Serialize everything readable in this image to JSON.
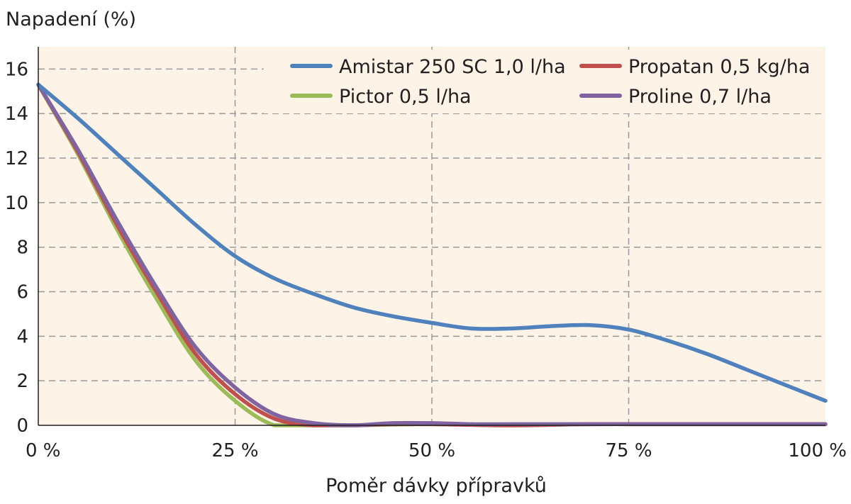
{
  "chart_data": {
    "type": "line",
    "title": "",
    "ylabel": "Napadení (%)",
    "xlabel": "Poměr dávky přípravků",
    "xlim": [
      0,
      100
    ],
    "ylim": [
      0,
      17
    ],
    "x_ticks": [
      0,
      25,
      50,
      75,
      100
    ],
    "x_tick_labels": [
      "0 %",
      "25 %",
      "50 %",
      "75 %",
      "100 %"
    ],
    "y_ticks": [
      0,
      2,
      4,
      6,
      8,
      10,
      12,
      14,
      16
    ],
    "y_tick_labels": [
      "0",
      "2",
      "4",
      "6",
      "8",
      "10",
      "12",
      "14",
      "16"
    ],
    "grid": true,
    "legend_position": "top-right",
    "background_color": "#fdf3e6",
    "series": [
      {
        "name": "Amistar 250 SC 1,0 l/ha",
        "color": "#4f81bd",
        "points": [
          [
            0,
            15.3
          ],
          [
            5,
            13.8
          ],
          [
            10,
            12.2
          ],
          [
            15,
            10.6
          ],
          [
            20,
            9.0
          ],
          [
            25,
            7.6
          ],
          [
            30,
            6.6
          ],
          [
            35,
            5.9
          ],
          [
            40,
            5.3
          ],
          [
            45,
            4.9
          ],
          [
            50,
            4.6
          ],
          [
            55,
            4.35
          ],
          [
            60,
            4.35
          ],
          [
            65,
            4.45
          ],
          [
            70,
            4.5
          ],
          [
            75,
            4.3
          ],
          [
            80,
            3.8
          ],
          [
            85,
            3.2
          ],
          [
            90,
            2.5
          ],
          [
            95,
            1.8
          ],
          [
            100,
            1.1
          ]
        ]
      },
      {
        "name": "Propatan 0,5 kg/ha",
        "color": "#c0504d",
        "points": [
          [
            0,
            15.3
          ],
          [
            5,
            12.3
          ],
          [
            10,
            9.0
          ],
          [
            15,
            6.0
          ],
          [
            20,
            3.2
          ],
          [
            25,
            1.4
          ],
          [
            30,
            0.3
          ],
          [
            35,
            0.0
          ],
          [
            40,
            0.0
          ],
          [
            45,
            0.05
          ],
          [
            50,
            0.05
          ],
          [
            60,
            0.0
          ],
          [
            70,
            0.05
          ],
          [
            80,
            0.05
          ],
          [
            90,
            0.05
          ],
          [
            100,
            0.05
          ]
        ]
      },
      {
        "name": "Pictor 0,5 l/ha",
        "color": "#9bbb59",
        "points": [
          [
            0,
            15.3
          ],
          [
            5,
            12.2
          ],
          [
            10,
            8.8
          ],
          [
            15,
            5.7
          ],
          [
            20,
            2.9
          ],
          [
            25,
            1.1
          ],
          [
            30,
            0.0
          ],
          [
            35,
            0.0
          ],
          [
            40,
            0.0
          ],
          [
            50,
            0.05
          ],
          [
            60,
            0.0
          ],
          [
            70,
            0.05
          ],
          [
            80,
            0.05
          ],
          [
            90,
            0.05
          ],
          [
            100,
            0.05
          ]
        ]
      },
      {
        "name": "Proline 0,7 l/ha",
        "color": "#8064a2",
        "points": [
          [
            0,
            15.3
          ],
          [
            5,
            12.4
          ],
          [
            10,
            9.2
          ],
          [
            15,
            6.2
          ],
          [
            20,
            3.5
          ],
          [
            25,
            1.7
          ],
          [
            30,
            0.5
          ],
          [
            35,
            0.1
          ],
          [
            40,
            0.0
          ],
          [
            45,
            0.1
          ],
          [
            50,
            0.1
          ],
          [
            55,
            0.05
          ],
          [
            60,
            0.05
          ],
          [
            70,
            0.05
          ],
          [
            80,
            0.05
          ],
          [
            90,
            0.05
          ],
          [
            100,
            0.05
          ]
        ]
      }
    ]
  }
}
